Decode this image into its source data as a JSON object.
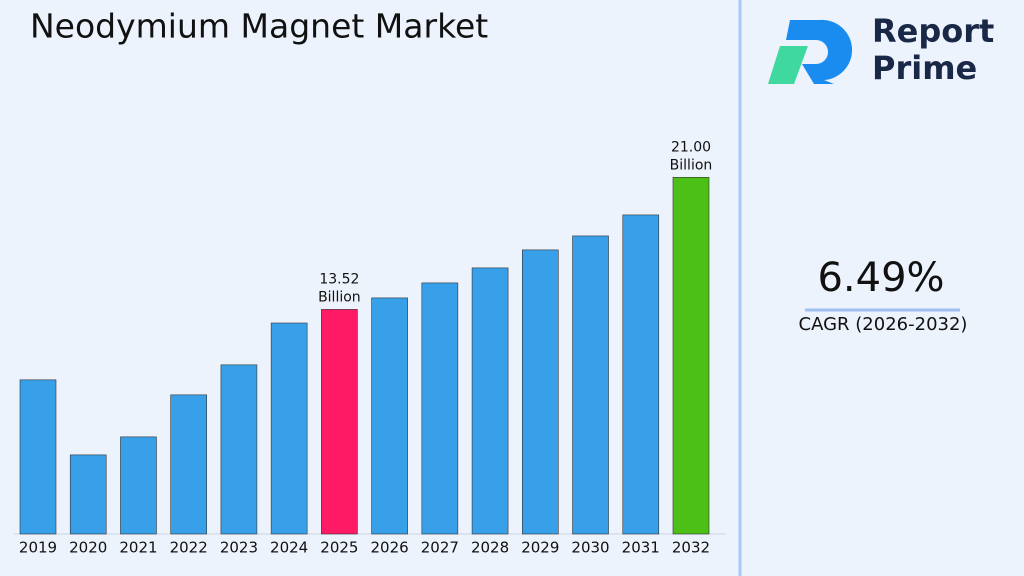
{
  "chart_data": {
    "type": "bar",
    "title": "Neodymium Magnet Market",
    "categories": [
      "2019",
      "2020",
      "2021",
      "2022",
      "2023",
      "2024",
      "2025",
      "2026",
      "2027",
      "2028",
      "2029",
      "2030",
      "2031",
      "2032"
    ],
    "values": [
      9.53,
      5.28,
      6.3,
      8.68,
      10.38,
      12.75,
      13.52,
      14.17,
      15.02,
      15.87,
      16.89,
      17.68,
      18.87,
      21.0
    ],
    "value_labels": [
      null,
      null,
      null,
      null,
      null,
      null,
      "13.52 Billion",
      null,
      null,
      null,
      null,
      null,
      null,
      "21.00 Billion"
    ],
    "colors": [
      "#38a0e8",
      "#38a0e8",
      "#38a0e8",
      "#38a0e8",
      "#38a0e8",
      "#38a0e8",
      "#ff1a66",
      "#38a0e8",
      "#38a0e8",
      "#38a0e8",
      "#38a0e8",
      "#38a0e8",
      "#38a0e8",
      "#4cc016"
    ],
    "ylim": [
      0.8,
      23
    ],
    "cagr": "6.49%",
    "cagr_label": "CAGR (2026-2032)",
    "brand": [
      "Report",
      "Prime"
    ]
  }
}
